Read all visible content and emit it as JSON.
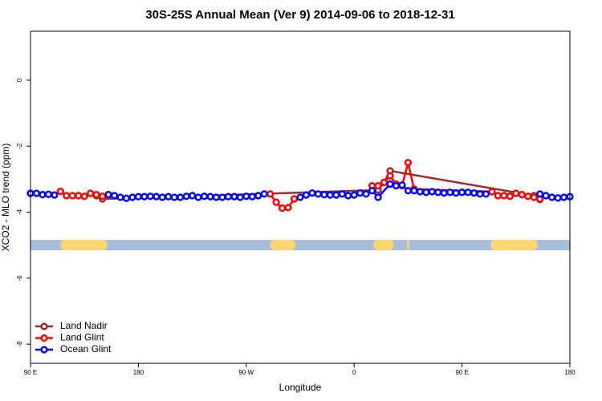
{
  "chart_data": {
    "type": "line",
    "title": "30S-25S Annual Mean (Ver 9)   2014-09-06 to 2018-12-31",
    "x_label": "Longitude",
    "y_label": "XCO2 - MLO trend (ppm)",
    "xlim": [
      90,
      540
    ],
    "ylim": [
      -8.58,
      1.48
    ],
    "xticks": [
      {
        "value": 90,
        "label": "90 E"
      },
      180,
      {
        "value": 270,
        "label": "90 W"
      },
      {
        "value": 360,
        "label": "0"
      },
      {
        "value": 450,
        "label": "90 E"
      },
      {
        "value": 540,
        "label": "180"
      }
    ],
    "yticks": [
      0,
      -2,
      -4,
      -6,
      -8
    ],
    "legend": "bottomleft",
    "surface_band": {
      "y": -5,
      "ocean_color": "#a6bddb",
      "land_color": "#fcd66e",
      "land": [
        [
          115,
          154
        ],
        [
          290,
          311
        ],
        [
          376,
          393
        ],
        [
          404,
          406
        ],
        [
          474,
          513
        ]
      ]
    },
    "series": [
      {
        "name": "Land Nadir",
        "color": "#9e2a2b",
        "x": [
          145,
          150,
          380,
          385,
          390,
          510,
          515
        ],
        "values": [
          -3.5,
          -3.6,
          -3.33,
          -3.1,
          -2.75,
          -3.5,
          -3.62
        ]
      },
      {
        "name": "Land Glint",
        "color": "#ff0000",
        "x": [
          115,
          120,
          125,
          130,
          135,
          140,
          145,
          150,
          155,
          290,
          295,
          300,
          305,
          310,
          315,
          375,
          380,
          385,
          390,
          395,
          400,
          405,
          410,
          475,
          480,
          485,
          490,
          495,
          500,
          505,
          510,
          515
        ],
        "values": [
          -3.37,
          -3.5,
          -3.5,
          -3.5,
          -3.52,
          -3.43,
          -3.47,
          -3.52,
          null,
          -3.45,
          -3.7,
          -3.88,
          -3.86,
          -3.6,
          null,
          -3.2,
          -3.2,
          -3.1,
          -2.9,
          -3.15,
          -3.2,
          -2.5,
          -3.3,
          -3.38,
          -3.5,
          -3.5,
          -3.52,
          -3.43,
          -3.47,
          -3.52,
          -3.55,
          -3.6
        ]
      },
      {
        "name": "Ocean Glint",
        "color": "#0000ff",
        "x": [
          90,
          95,
          100,
          105,
          110,
          115,
          155,
          160,
          165,
          170,
          175,
          180,
          185,
          190,
          195,
          200,
          205,
          210,
          215,
          220,
          225,
          230,
          235,
          240,
          245,
          250,
          255,
          260,
          265,
          270,
          275,
          280,
          285,
          290,
          315,
          320,
          325,
          330,
          335,
          340,
          345,
          350,
          355,
          360,
          365,
          370,
          375,
          380,
          390,
          395,
          400,
          405,
          410,
          415,
          420,
          425,
          430,
          435,
          440,
          445,
          450,
          455,
          460,
          465,
          470,
          475,
          515,
          520,
          525,
          530,
          535,
          540
        ],
        "values": [
          -3.43,
          -3.43,
          -3.47,
          -3.46,
          -3.48,
          null,
          -3.47,
          -3.5,
          -3.55,
          -3.58,
          -3.55,
          -3.53,
          -3.53,
          -3.52,
          -3.53,
          -3.55,
          -3.53,
          -3.55,
          -3.55,
          -3.52,
          -3.5,
          -3.55,
          -3.52,
          -3.53,
          -3.55,
          -3.55,
          -3.53,
          -3.53,
          -3.55,
          -3.52,
          -3.53,
          -3.5,
          -3.45,
          null,
          -3.55,
          -3.48,
          -3.42,
          -3.45,
          -3.47,
          -3.48,
          -3.48,
          -3.45,
          -3.5,
          -3.48,
          -3.42,
          -3.45,
          -3.35,
          -3.55,
          -3.15,
          -3.2,
          -3.18,
          -3.35,
          -3.35,
          -3.38,
          -3.4,
          -3.38,
          -3.4,
          -3.42,
          -3.4,
          -3.42,
          -3.4,
          -3.4,
          -3.42,
          -3.45,
          -3.45,
          null,
          -3.45,
          -3.5,
          -3.55,
          -3.57,
          -3.55,
          -3.53
        ]
      }
    ]
  }
}
